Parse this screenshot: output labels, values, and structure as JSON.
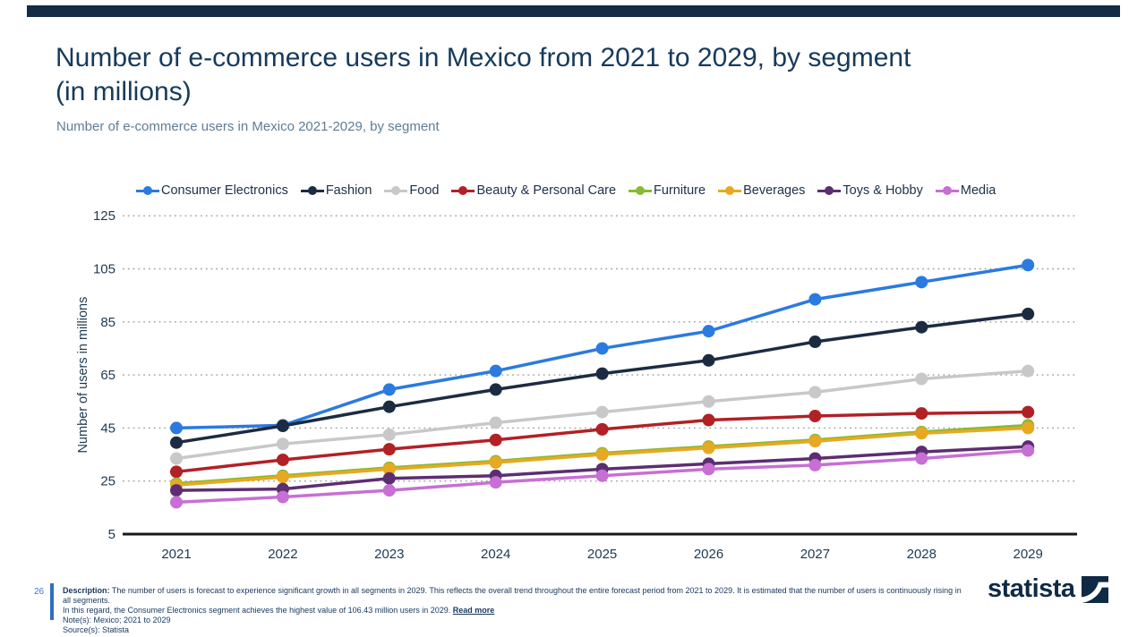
{
  "page": {
    "title_line1": "Number of e-commerce users in Mexico from 2021 to 2029, by segment",
    "title_line2": "(in millions)",
    "subtitle": "Number of e-commerce users in Mexico 2021-2029, by segment",
    "page_number": "26",
    "footer": {
      "description_label": "Description:",
      "description_text": "The number of users is forecast to experience significant growth in all segments in 2029. This reflects the overall trend throughout the entire forecast period from 2021 to 2029. It is estimated that the number of users is continuously rising in all segments.",
      "description_line2": "In this regard, the Consumer Electronics segment achieves the highest value of 106.43 million users in 2029.",
      "read_more": "Read more",
      "notes": "Note(s): Mexico; 2021 to 2029",
      "sources": "Source(s): Statista"
    },
    "brand": "statista"
  },
  "colors": {
    "accent_bar": "#142c44",
    "title": "#163a5c",
    "subtitle": "#5e7d95",
    "axis_text": "#1c3a52",
    "gridline": "#a0a0a0",
    "axis_line": "#15181c",
    "footer_accent": "#2f6fc0",
    "brand_navy": "#0e2a45"
  },
  "chart_data": {
    "type": "line",
    "title": "Number of e-commerce users in Mexico from 2021 to 2029, by segment (in millions)",
    "xlabel": "",
    "ylabel": "Number of users in millions",
    "x": [
      2021,
      2022,
      2023,
      2024,
      2025,
      2026,
      2027,
      2028,
      2029
    ],
    "ylim": [
      5,
      125
    ],
    "yticks": [
      5,
      25,
      45,
      65,
      85,
      105,
      125
    ],
    "grid": "horizontal-dotted",
    "legend_position": "top",
    "marker": "circle",
    "series": [
      {
        "name": "Consumer Electronics",
        "color": "#2b7ae0",
        "values": [
          45,
          46,
          59.5,
          66.5,
          75,
          81.5,
          93.5,
          100,
          106.43
        ]
      },
      {
        "name": "Fashion",
        "color": "#1b2c42",
        "values": [
          39.5,
          45.8,
          53,
          59.5,
          65.5,
          70.5,
          77.5,
          83,
          88
        ]
      },
      {
        "name": "Food",
        "color": "#c8c8c8",
        "values": [
          33.5,
          39,
          42.5,
          47,
          51,
          55,
          58.5,
          63.5,
          66.5
        ]
      },
      {
        "name": "Beauty & Personal Care",
        "color": "#b12126",
        "values": [
          28.5,
          33,
          37,
          40.5,
          44.5,
          48,
          49.5,
          50.5,
          51
        ]
      },
      {
        "name": "Furniture",
        "color": "#86bb33",
        "values": [
          24,
          27,
          30,
          32.5,
          35.5,
          38,
          40.5,
          43.5,
          46
        ]
      },
      {
        "name": "Beverages",
        "color": "#e7a922",
        "values": [
          23.5,
          26.5,
          29.5,
          32,
          35,
          37.5,
          40,
          43,
          45
        ]
      },
      {
        "name": "Toys & Hobby",
        "color": "#5c2e71",
        "values": [
          21.5,
          22,
          26,
          27,
          29.5,
          31.5,
          33.5,
          36,
          38
        ]
      },
      {
        "name": "Media",
        "color": "#c76fd4",
        "values": [
          17,
          19,
          21.5,
          24.5,
          27,
          29.5,
          31,
          33.5,
          36.5
        ]
      }
    ]
  }
}
